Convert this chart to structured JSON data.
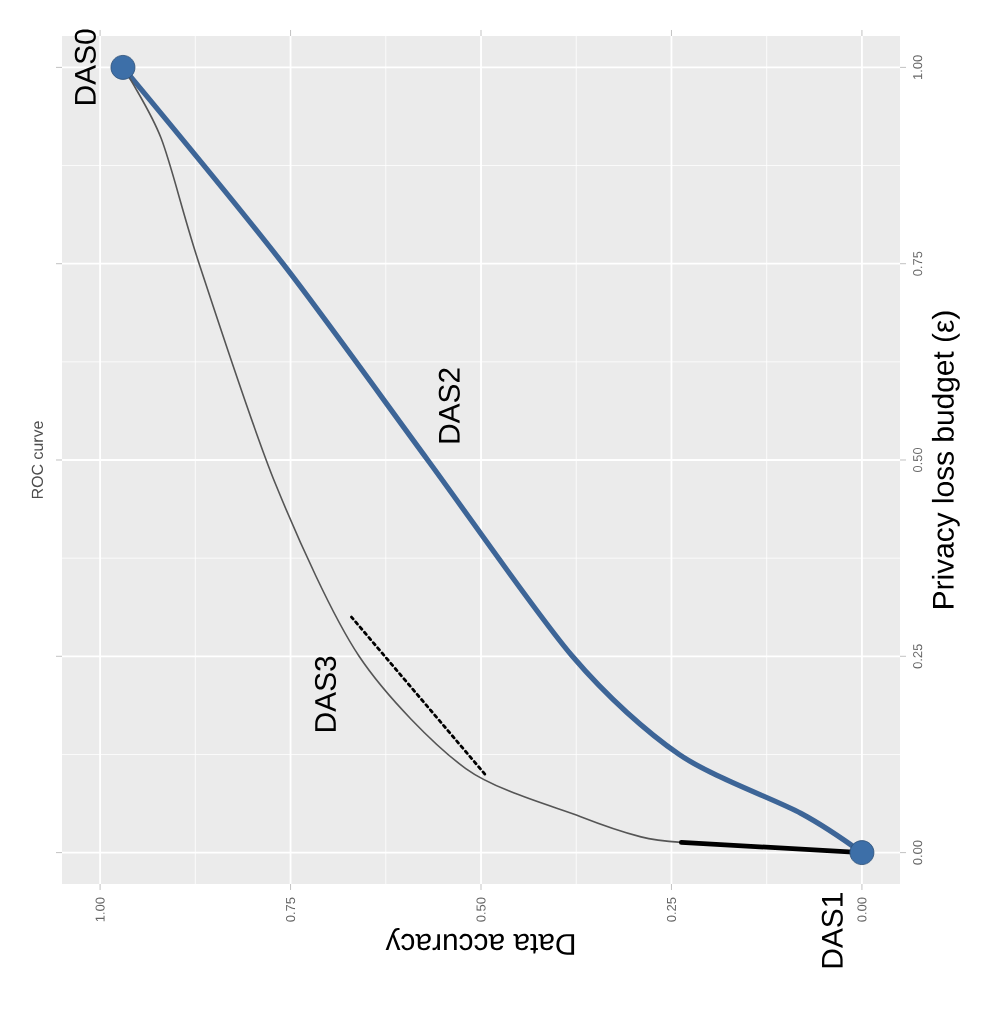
{
  "chart_data": {
    "type": "line",
    "title": "ROC curve",
    "xlabel": "Data accuracy",
    "ylabel": "Privacy loss budget (ε)",
    "xlim": [
      1.05,
      -0.05
    ],
    "ylim": [
      -0.04,
      1.04
    ],
    "xticks": [
      {
        "value": 0,
        "label": "0.00"
      },
      {
        "value": 0.25,
        "label": "0.25"
      },
      {
        "value": 0.5,
        "label": "0.50"
      },
      {
        "value": 0.75,
        "label": "0.75"
      },
      {
        "value": 1,
        "label": "1.00"
      }
    ],
    "yticks": [
      {
        "value": 0,
        "label": "0.00"
      },
      {
        "value": 0.25,
        "label": "0.25"
      },
      {
        "value": 0.5,
        "label": "0.50"
      },
      {
        "value": 0.75,
        "label": "0.75"
      },
      {
        "value": 1,
        "label": "1.00"
      }
    ],
    "grid": true,
    "series": [
      {
        "name": "DAS0",
        "type": "scatter",
        "marker": "circle",
        "color": "#3d6fa8",
        "x": [
          0.97
        ],
        "values": [
          1
        ]
      },
      {
        "name": "DAS1",
        "type": "scatter",
        "marker": "circle",
        "color": "#3d6fa8",
        "x": [
          0
        ],
        "values": [
          0
        ]
      },
      {
        "name": "DAS2",
        "type": "line",
        "color": "#3d6597",
        "x": [
          0,
          0.08,
          0.24,
          0.38,
          0.57,
          0.76,
          0.97
        ],
        "values": [
          0,
          0.05,
          0.125,
          0.25,
          0.5,
          0.75,
          1
        ]
      },
      {
        "name": "DAS3",
        "type": "line",
        "color": "#555555",
        "x": [
          0.237,
          0.29,
          0.37,
          0.52,
          0.66,
          0.77,
          0.87,
          0.92,
          0.97
        ],
        "values": [
          0.013,
          0.02,
          0.046,
          0.107,
          0.25,
          0.47,
          0.75,
          0.91,
          1
        ]
      },
      {
        "type": "line",
        "color": "#000000",
        "x": [
          0,
          0.237
        ],
        "values": [
          0,
          0.013
        ]
      },
      {
        "type": "line",
        "color": "#000000",
        "line_style": "dotted",
        "x": [
          0.495,
          0.67
        ],
        "values": [
          0.1,
          0.3
        ]
      }
    ]
  }
}
